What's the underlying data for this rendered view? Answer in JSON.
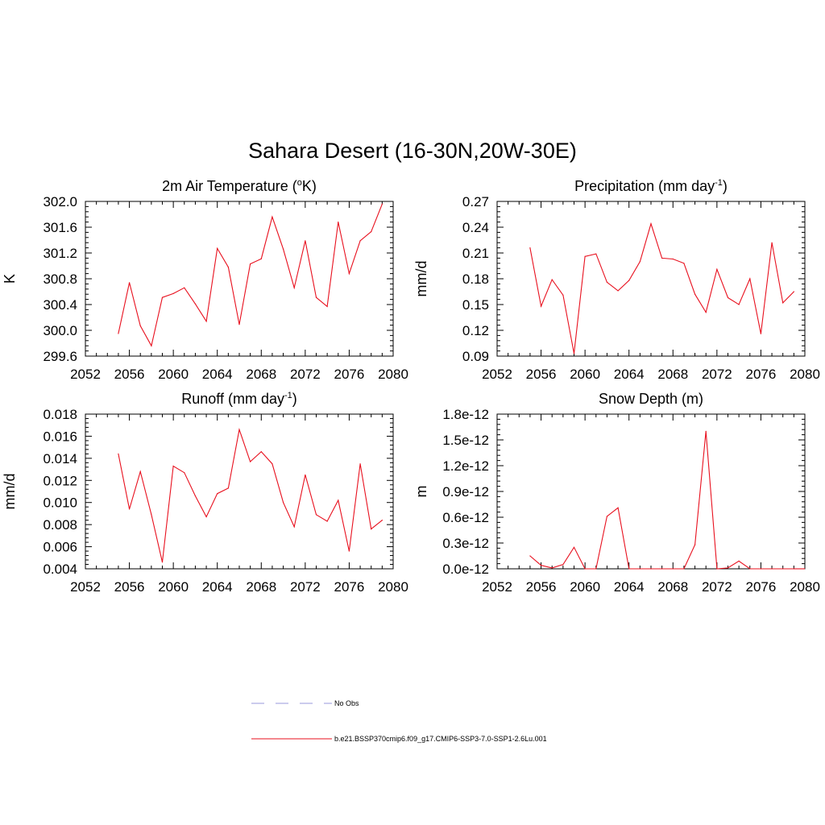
{
  "figure": {
    "title": "Sahara Desert (16-30N,20W-30E)",
    "line_color": "#e8101e",
    "legend": [
      {
        "label": "No Obs",
        "style": "dashed",
        "color": "#9999dd"
      },
      {
        "label": "b.e21.BSSP370cmip6.f09_g17.CMIP6-SSP3-7.0-SSP1-2.6Lu.001",
        "style": "solid",
        "color": "#e8101e"
      }
    ]
  },
  "chart_data": [
    {
      "type": "line",
      "title": "2m Air Temperature (",
      "title_super": "o",
      "title_after": "K)",
      "ylabel": "K",
      "xlim": [
        2052,
        2080
      ],
      "xticks": [
        "2052",
        "2056",
        "2060",
        "2064",
        "2068",
        "2072",
        "2076",
        "2080"
      ],
      "ylim": [
        299.6,
        302.0
      ],
      "yticks": [
        "299.6",
        "300.0",
        "300.4",
        "300.8",
        "301.2",
        "301.6",
        "302.0"
      ],
      "x": [
        2055,
        2056,
        2057,
        2058,
        2059,
        2060,
        2061,
        2062,
        2063,
        2064,
        2065,
        2066,
        2067,
        2068,
        2069,
        2070,
        2071,
        2072,
        2073,
        2074,
        2075,
        2076,
        2077,
        2078,
        2079
      ],
      "values": [
        299.95,
        300.74,
        300.07,
        299.76,
        300.51,
        300.57,
        300.66,
        300.41,
        300.14,
        301.27,
        300.98,
        300.09,
        301.03,
        301.11,
        301.76,
        301.26,
        300.66,
        301.39,
        300.51,
        300.37,
        301.68,
        300.88,
        301.39,
        301.53,
        301.96
      ]
    },
    {
      "type": "line",
      "title": "Precipitation (mm day",
      "title_super": "-1",
      "title_after": ")",
      "ylabel": "mm/d",
      "xlim": [
        2052,
        2080
      ],
      "xticks": [
        "2052",
        "2056",
        "2060",
        "2064",
        "2068",
        "2072",
        "2076",
        "2080"
      ],
      "ylim": [
        0.09,
        0.27
      ],
      "yticks": [
        "0.09",
        "0.12",
        "0.15",
        "0.18",
        "0.21",
        "0.24",
        "0.27"
      ],
      "x": [
        2055,
        2056,
        2057,
        2058,
        2059,
        2060,
        2061,
        2062,
        2063,
        2064,
        2065,
        2066,
        2067,
        2068,
        2069,
        2070,
        2071,
        2072,
        2073,
        2074,
        2075,
        2076,
        2077,
        2078,
        2079
      ],
      "values": [
        0.216,
        0.148,
        0.179,
        0.161,
        0.093,
        0.206,
        0.209,
        0.176,
        0.166,
        0.178,
        0.2,
        0.244,
        0.204,
        0.203,
        0.198,
        0.162,
        0.141,
        0.191,
        0.158,
        0.15,
        0.18,
        0.116,
        0.222,
        0.152,
        0.165
      ]
    },
    {
      "type": "line",
      "title": "Runoff (mm day",
      "title_super": "-1",
      "title_after": ")",
      "ylabel": "mm/d",
      "xlim": [
        2052,
        2080
      ],
      "xticks": [
        "2052",
        "2056",
        "2060",
        "2064",
        "2068",
        "2072",
        "2076",
        "2080"
      ],
      "ylim": [
        0.004,
        0.018
      ],
      "yticks": [
        "0.004",
        "0.006",
        "0.008",
        "0.010",
        "0.012",
        "0.014",
        "0.016",
        "0.018"
      ],
      "x": [
        2055,
        2056,
        2057,
        2058,
        2059,
        2060,
        2061,
        2062,
        2063,
        2064,
        2065,
        2066,
        2067,
        2068,
        2069,
        2070,
        2071,
        2072,
        2073,
        2074,
        2075,
        2076,
        2077,
        2078,
        2079
      ],
      "values": [
        0.0144,
        0.0094,
        0.0128,
        0.0089,
        0.0046,
        0.0133,
        0.0127,
        0.0106,
        0.0087,
        0.0108,
        0.0113,
        0.0166,
        0.0137,
        0.0146,
        0.0135,
        0.01,
        0.0078,
        0.0125,
        0.0089,
        0.0083,
        0.0102,
        0.0056,
        0.0135,
        0.0076,
        0.0084
      ]
    },
    {
      "type": "line",
      "title": "Snow Depth (m)",
      "ylabel": "m",
      "xlim": [
        2052,
        2080
      ],
      "xticks": [
        "2052",
        "2056",
        "2060",
        "2064",
        "2068",
        "2072",
        "2076",
        "2080"
      ],
      "ylim": [
        0.0,
        1.8e-12
      ],
      "yticks": [
        "0.0e-12",
        "0.3e-12",
        "0.6e-12",
        "0.9e-12",
        "1.2e-12",
        "1.5e-12",
        "1.8e-12"
      ],
      "x": [
        2055,
        2056,
        2057,
        2058,
        2059,
        2060,
        2061,
        2062,
        2063,
        2064,
        2065,
        2066,
        2067,
        2068,
        2069,
        2070,
        2071,
        2072,
        2073,
        2074,
        2075,
        2076,
        2077,
        2078,
        2079
      ],
      "values": [
        1.5e-13,
        4e-14,
        1e-14,
        5e-14,
        2.5e-13,
        0.0,
        0.0,
        6.1e-13,
        7.1e-13,
        0.0,
        0.0,
        0.0,
        0.0,
        0.0,
        0.0,
        2.8e-13,
        1.6e-12,
        0.0,
        1e-14,
        9e-14,
        0.0,
        0.0,
        0.0,
        0.0,
        0.0
      ]
    }
  ]
}
